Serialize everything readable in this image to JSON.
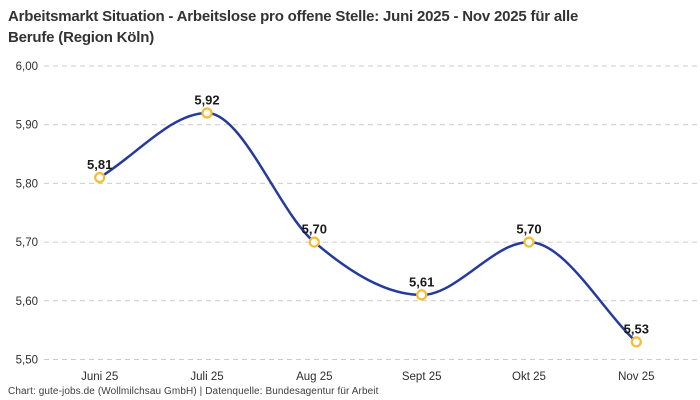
{
  "title": "Arbeitsmarkt Situation - Arbeitslose pro offene Stelle: Juni 2025 - Nov 2025 für alle\nBerufe (Region Köln)",
  "footer": "Chart: gute-jobs.de (Wollmilchsau GmbH) | Datenquelle: Bundesagentur für Arbeit",
  "chart_data": {
    "type": "line",
    "title": "Arbeitsmarkt Situation - Arbeitslose pro offene Stelle: Juni 2025 - Nov 2025 für alle Berufe (Region Köln)",
    "categories": [
      "Juni 25",
      "Juli 25",
      "Aug 25",
      "Sept 25",
      "Okt 25",
      "Nov 25"
    ],
    "values": [
      5.81,
      5.92,
      5.7,
      5.61,
      5.7,
      5.53
    ],
    "point_labels": [
      "5,81",
      "5,92",
      "5,70",
      "5,61",
      "5,70",
      "5,53"
    ],
    "ylim": [
      5.5,
      6.0
    ],
    "ytick_values": [
      5.5,
      5.6,
      5.7,
      5.8,
      5.9,
      6.0
    ],
    "ytick_labels": [
      "5,50",
      "5,60",
      "5,70",
      "5,80",
      "5,90",
      "6,00"
    ],
    "grid": true,
    "legend": "none",
    "interpolation": "monotone",
    "colors": {
      "line": "#243A9E",
      "marker_ring": "#F5BE32",
      "marker_fill": "#FFFFFF",
      "gridline": "#CBCBCB",
      "title": "#333333",
      "point_label": "#1A1A1A",
      "axis_label": "#2E2E2E",
      "footer": "#3D3D3D"
    }
  }
}
